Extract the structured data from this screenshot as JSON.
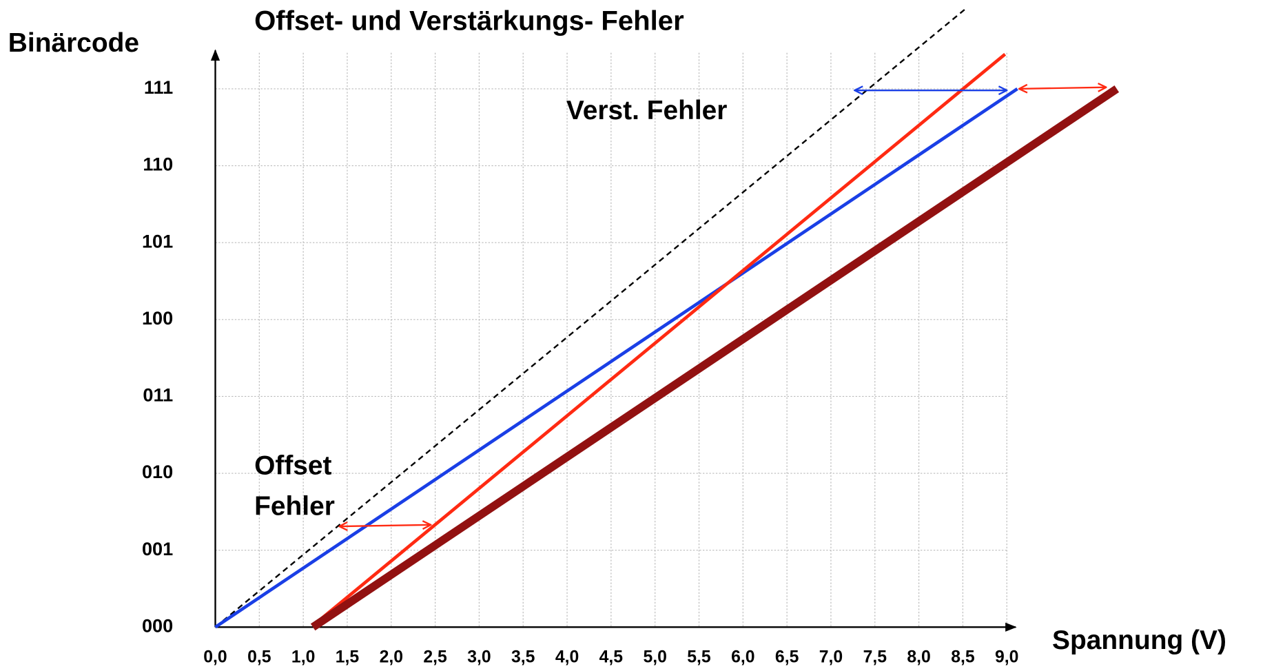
{
  "chart_data": {
    "type": "line",
    "title": "Offset- und Verstärkungs- Fehler",
    "ylabel": "Binärcode",
    "xlabel": "Spannung (V)",
    "annotations": [
      "Verst. Fehler",
      "Offset",
      "Fehler"
    ],
    "xlim": [
      0,
      9.1
    ],
    "ylim": [
      0,
      7.5
    ],
    "xticks": [
      {
        "value": 0,
        "label": "0,0"
      },
      {
        "value": 0.5,
        "label": "0,5"
      },
      {
        "value": 1,
        "label": "1,0"
      },
      {
        "value": 1.5,
        "label": "1,5"
      },
      {
        "value": 2,
        "label": "2,0"
      },
      {
        "value": 2.5,
        "label": "2,5"
      },
      {
        "value": 3,
        "label": "3,0"
      },
      {
        "value": 3.5,
        "label": "3,5"
      },
      {
        "value": 4,
        "label": "4,0"
      },
      {
        "value": 4.5,
        "label": "4,5"
      },
      {
        "value": 5,
        "label": "5,0"
      },
      {
        "value": 5.5,
        "label": "5,5"
      },
      {
        "value": 6,
        "label": "6,0"
      },
      {
        "value": 6.5,
        "label": "6,5"
      },
      {
        "value": 7,
        "label": "7,0"
      },
      {
        "value": 7.5,
        "label": "7,5"
      },
      {
        "value": 8,
        "label": "8,0"
      },
      {
        "value": 8.5,
        "label": "8,5"
      },
      {
        "value": 9,
        "label": "9,0"
      }
    ],
    "yticks": [
      {
        "value": 0,
        "label": "000"
      },
      {
        "value": 1,
        "label": "001"
      },
      {
        "value": 2,
        "label": "010"
      },
      {
        "value": 3,
        "label": "011"
      },
      {
        "value": 4,
        "label": "100"
      },
      {
        "value": 5,
        "label": "101"
      },
      {
        "value": 6,
        "label": "110"
      },
      {
        "value": 7,
        "label": "111"
      }
    ],
    "grid": true,
    "series": [
      {
        "color": "#000000",
        "dashed": true,
        "linewidth": 2,
        "x": [
          0,
          8.52
        ],
        "values": [
          0,
          8.03
        ]
      },
      {
        "color": "#1a3fe6",
        "linewidth": 4,
        "x": [
          0,
          9.12
        ],
        "values": [
          0,
          7
        ]
      },
      {
        "color": "#ff2a12",
        "linewidth": 4,
        "x": [
          1.11,
          8.98
        ],
        "values": [
          0.02,
          7.45
        ]
      },
      {
        "color": "#921111",
        "linewidth": 10,
        "x": [
          1.11,
          10.25
        ],
        "values": [
          0,
          7
        ]
      }
    ],
    "arrows": [
      {
        "color": "#1a3fe6",
        "x": [
          7.27,
          9.0
        ],
        "values": [
          6.98,
          6.98
        ]
      },
      {
        "color": "#ff2a12",
        "x": [
          9.14,
          10.13
        ],
        "values": [
          7.0,
          7.02
        ]
      },
      {
        "color": "#ff2a12",
        "x": [
          1.41,
          2.45
        ],
        "values": [
          1.31,
          1.33
        ]
      }
    ]
  }
}
